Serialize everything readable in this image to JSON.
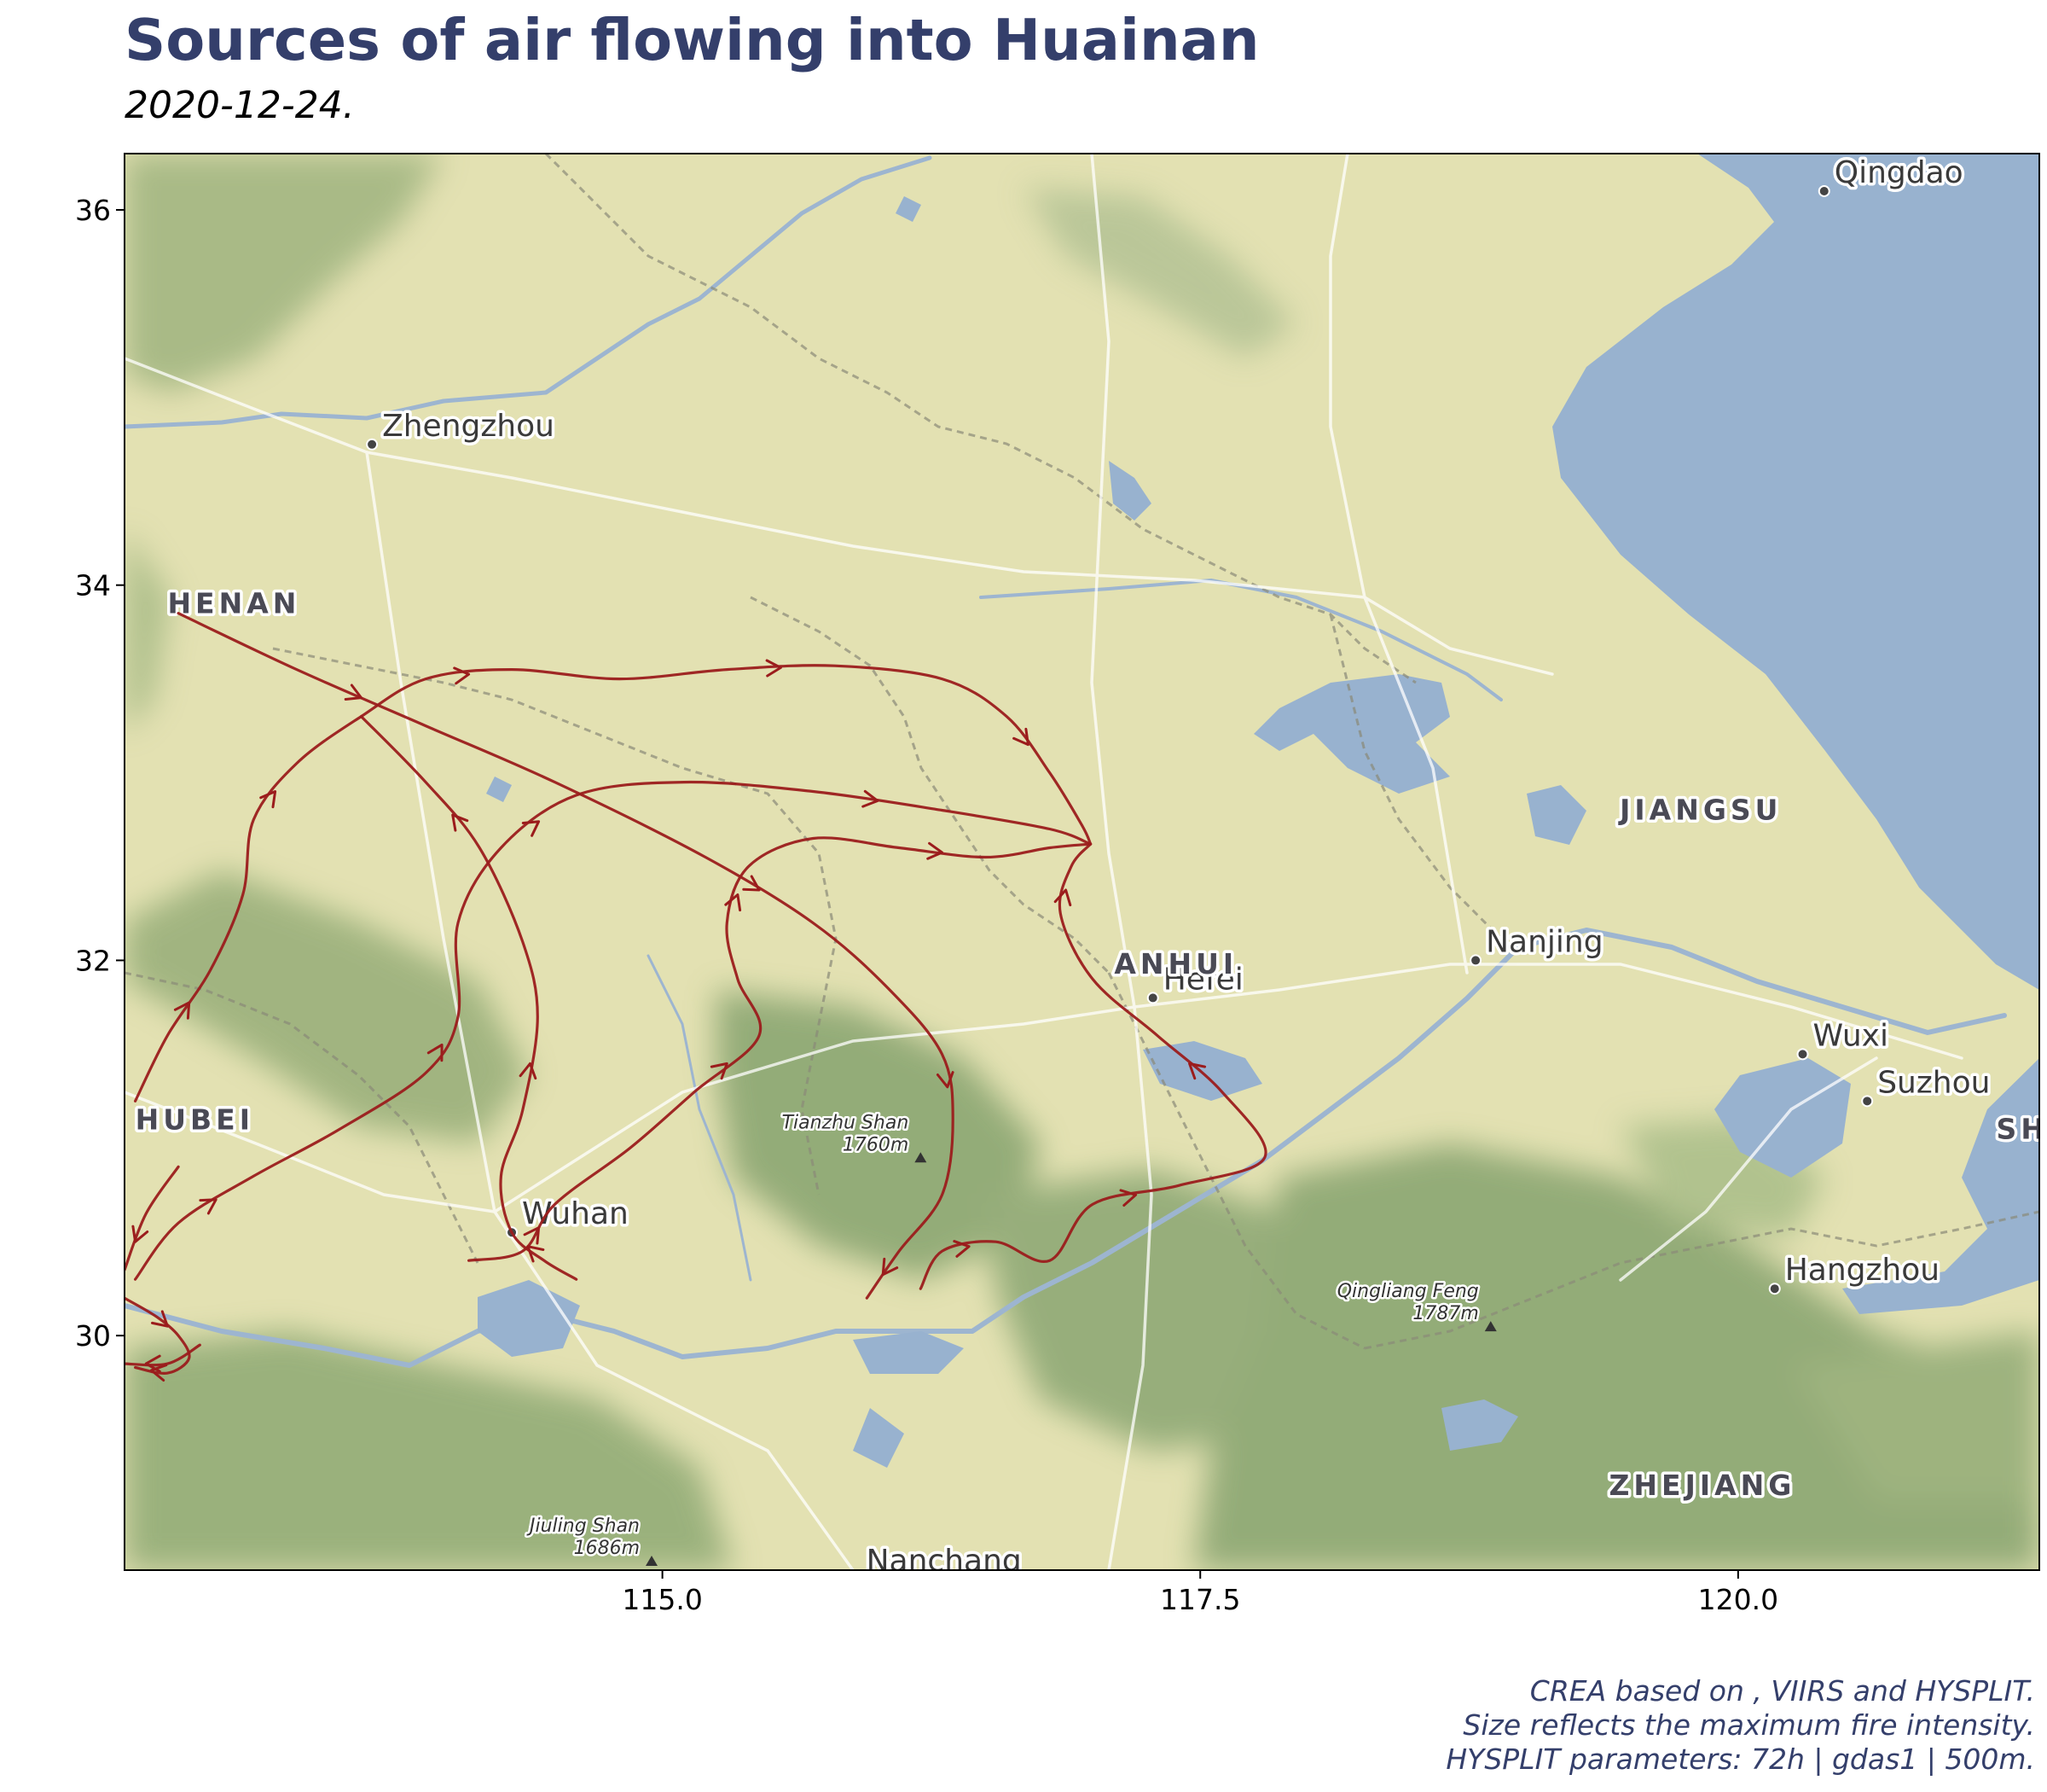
{
  "title": "Sources of air flowing into Huainan",
  "subtitle": "2020-12-24.",
  "caption": [
    "CREA based on , VIIRS and HYSPLIT.",
    "Size reflects the maximum fire intensity.",
    "HYSPLIT parameters: 72h | gdas1 | 500m."
  ],
  "axes": {
    "x_ticks": [
      {
        "value": 115.0,
        "label": "115.0"
      },
      {
        "value": 117.5,
        "label": "117.5"
      },
      {
        "value": 120.0,
        "label": "120.0"
      }
    ],
    "y_ticks": [
      {
        "value": 30,
        "label": "30"
      },
      {
        "value": 32,
        "label": "32"
      },
      {
        "value": 34,
        "label": "34"
      },
      {
        "value": 36,
        "label": "36"
      }
    ],
    "xlim": [
      112.5,
      121.4
    ],
    "ylim": [
      28.75,
      36.3
    ]
  },
  "colors": {
    "trajectory": "#9b1c1c",
    "land": "#e3e1b2",
    "water": "#98b2cf",
    "forest": "#86a36e",
    "title": "#343f6b"
  },
  "cities": [
    {
      "name": "Qingdao",
      "lon": 120.4,
      "lat": 36.1
    },
    {
      "name": "Zhengzhou",
      "lon": 113.65,
      "lat": 34.75
    },
    {
      "name": "Nanjing",
      "lon": 118.78,
      "lat": 32.0
    },
    {
      "name": "Hefei",
      "lon": 117.28,
      "lat": 31.8
    },
    {
      "name": "Wuxi",
      "lon": 120.3,
      "lat": 31.5
    },
    {
      "name": "Suzhou",
      "lon": 120.6,
      "lat": 31.25
    },
    {
      "name": "Wuhan",
      "lon": 114.3,
      "lat": 30.55
    },
    {
      "name": "Hangzhou",
      "lon": 120.17,
      "lat": 30.25
    },
    {
      "name": "Nanchang",
      "lon": 115.9,
      "lat": 28.7
    }
  ],
  "provinces": [
    {
      "name": "HENAN",
      "lon": 112.7,
      "lat": 33.85
    },
    {
      "name": "JIANGSU",
      "lon": 119.45,
      "lat": 32.75
    },
    {
      "name": "ANHUI",
      "lon": 117.1,
      "lat": 31.93
    },
    {
      "name": "HUBEI",
      "lon": 112.55,
      "lat": 31.1
    },
    {
      "name": "SHANG",
      "lon": 121.2,
      "lat": 31.05
    },
    {
      "name": "ZHEJIANG",
      "lon": 119.4,
      "lat": 29.15
    }
  ],
  "peaks": [
    {
      "name": "Tianzhu Shan",
      "elev": "1760m",
      "lon": 116.2,
      "lat": 30.95
    },
    {
      "name": "Qingliang Feng",
      "elev": "1787m",
      "lon": 118.85,
      "lat": 30.05
    },
    {
      "name": "Jiuling Shan",
      "elev": "1686m",
      "lon": 114.95,
      "lat": 28.8
    }
  ],
  "receptor": {
    "name": "Huainan",
    "lon": 116.99,
    "lat": 32.62
  },
  "trajectories": [
    [
      [
        112.55,
        31.25
      ],
      [
        112.7,
        31.6
      ],
      [
        112.9,
        31.95
      ],
      [
        113.05,
        32.35
      ],
      [
        113.1,
        32.75
      ],
      [
        113.3,
        33.05
      ],
      [
        113.6,
        33.3
      ],
      [
        113.9,
        33.5
      ],
      [
        114.3,
        33.55
      ],
      [
        114.8,
        33.5
      ],
      [
        115.3,
        33.55
      ],
      [
        115.8,
        33.57
      ],
      [
        116.3,
        33.5
      ],
      [
        116.6,
        33.3
      ],
      [
        116.8,
        33.0
      ],
      [
        116.95,
        32.72
      ],
      [
        116.99,
        32.62
      ]
    ],
    [
      [
        112.55,
        30.3
      ],
      [
        112.75,
        30.6
      ],
      [
        113.1,
        30.85
      ],
      [
        113.5,
        31.1
      ],
      [
        113.9,
        31.4
      ],
      [
        114.05,
        31.7
      ],
      [
        114.05,
        32.2
      ],
      [
        114.25,
        32.6
      ],
      [
        114.6,
        32.88
      ],
      [
        115.1,
        32.95
      ],
      [
        115.7,
        32.9
      ],
      [
        116.3,
        32.8
      ],
      [
        116.8,
        32.7
      ],
      [
        116.99,
        32.62
      ]
    ],
    [
      [
        114.6,
        30.3
      ],
      [
        114.45,
        30.4
      ],
      [
        114.3,
        30.55
      ],
      [
        114.25,
        30.85
      ],
      [
        114.35,
        31.2
      ],
      [
        114.42,
        31.7
      ],
      [
        114.35,
        32.1
      ],
      [
        114.15,
        32.6
      ],
      [
        113.9,
        32.95
      ],
      [
        113.6,
        33.3
      ]
    ],
    [
      [
        112.5,
        30.2
      ],
      [
        112.65,
        30.1
      ],
      [
        112.75,
        30.0
      ],
      [
        112.8,
        29.88
      ],
      [
        112.7,
        29.8
      ],
      [
        112.55,
        29.83
      ]
    ],
    [
      [
        112.85,
        29.95
      ],
      [
        112.7,
        29.85
      ],
      [
        112.5,
        29.85
      ]
    ],
    [
      [
        112.75,
        30.9
      ],
      [
        112.6,
        30.65
      ],
      [
        112.5,
        30.35
      ]
    ],
    [
      [
        114.1,
        30.4
      ],
      [
        114.35,
        30.45
      ],
      [
        114.5,
        30.7
      ],
      [
        114.85,
        31.0
      ],
      [
        115.15,
        31.3
      ],
      [
        115.45,
        31.6
      ],
      [
        115.35,
        31.9
      ],
      [
        115.3,
        32.2
      ],
      [
        115.4,
        32.5
      ],
      [
        115.7,
        32.65
      ],
      [
        116.1,
        32.6
      ],
      [
        116.5,
        32.55
      ],
      [
        116.8,
        32.6
      ],
      [
        116.99,
        32.62
      ]
    ],
    [
      [
        116.2,
        30.25
      ],
      [
        116.3,
        30.45
      ],
      [
        116.55,
        30.5
      ],
      [
        116.8,
        30.4
      ],
      [
        117.0,
        30.7
      ],
      [
        117.4,
        30.8
      ],
      [
        117.8,
        30.95
      ],
      [
        117.6,
        31.3
      ],
      [
        117.3,
        31.6
      ],
      [
        117.0,
        31.9
      ],
      [
        116.85,
        32.25
      ],
      [
        116.9,
        32.5
      ],
      [
        116.99,
        32.62
      ]
    ],
    [
      [
        112.75,
        33.85
      ],
      [
        113.3,
        33.55
      ],
      [
        113.9,
        33.25
      ],
      [
        114.5,
        32.95
      ],
      [
        115.2,
        32.55
      ],
      [
        115.7,
        32.2
      ],
      [
        116.05,
        31.85
      ],
      [
        116.3,
        31.5
      ],
      [
        116.35,
        31.15
      ],
      [
        116.3,
        30.75
      ],
      [
        116.1,
        30.45
      ],
      [
        115.95,
        30.2
      ]
    ]
  ]
}
